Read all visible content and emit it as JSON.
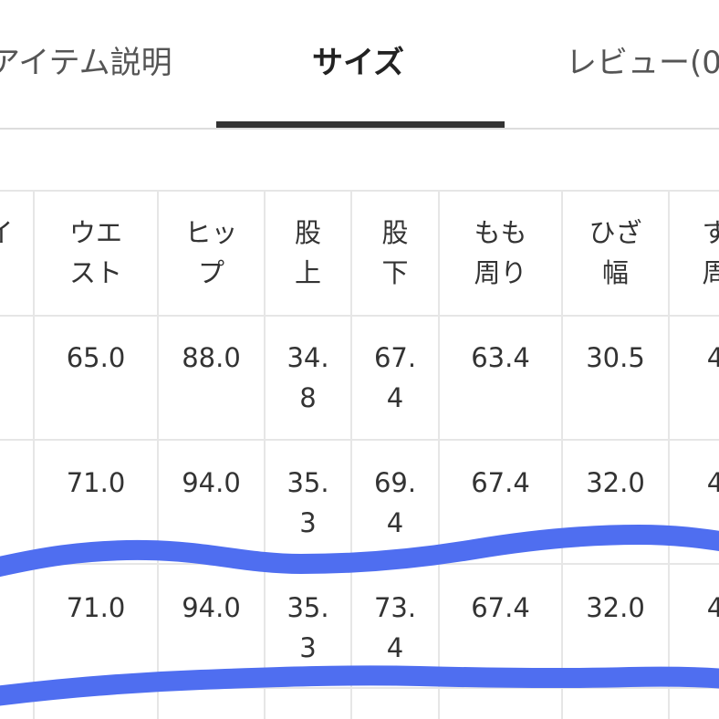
{
  "tabs": {
    "item_description": "アイテム説明",
    "size": "サイズ",
    "reviews": "レビュー(0"
  },
  "table": {
    "header_partial_left": "イ",
    "headers": [
      "ウエ\nスト",
      "ヒッ\nプ",
      "股\n上",
      "股\n下",
      "もも\n周り",
      "ひざ\n幅",
      "す\n周"
    ],
    "rows": [
      {
        "cells": [
          "65.0",
          "88.0",
          "34.\n8",
          "67.\n4",
          "63.4",
          "30.5",
          "4"
        ]
      },
      {
        "cells": [
          "71.0",
          "94.0",
          "35.\n3",
          "69.\n4",
          "67.4",
          "32.0",
          "4"
        ]
      },
      {
        "cells": [
          "71.0",
          "94.0",
          "35.\n3",
          "73.\n4",
          "67.4",
          "32.0",
          "4"
        ]
      }
    ]
  },
  "colors": {
    "marker": "#4f6ef0",
    "tab_active_underline": "#333333",
    "grid_line": "#e6e6e6"
  }
}
